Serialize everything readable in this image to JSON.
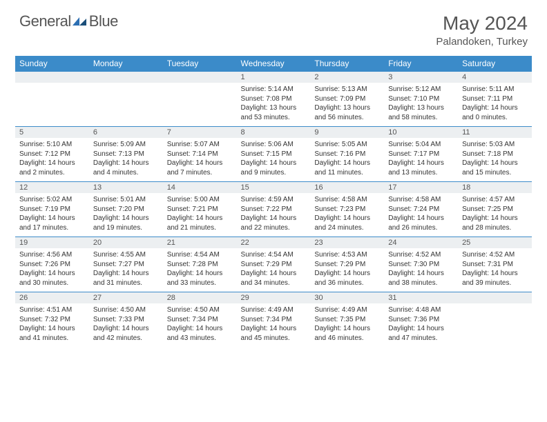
{
  "brand": {
    "name1": "General",
    "name2": "Blue",
    "icon_color": "#2d6fb3"
  },
  "title": "May 2024",
  "location": "Palandoken, Turkey",
  "colors": {
    "header_bg": "#3b8bc9",
    "daynum_bg": "#eceff1",
    "rule": "#3b8bc9"
  },
  "weekdays": [
    "Sunday",
    "Monday",
    "Tuesday",
    "Wednesday",
    "Thursday",
    "Friday",
    "Saturday"
  ],
  "first_weekday_index": 3,
  "days": [
    {
      "n": 1,
      "sr": "5:14 AM",
      "ss": "7:08 PM",
      "dl": "13 hours and 53 minutes."
    },
    {
      "n": 2,
      "sr": "5:13 AM",
      "ss": "7:09 PM",
      "dl": "13 hours and 56 minutes."
    },
    {
      "n": 3,
      "sr": "5:12 AM",
      "ss": "7:10 PM",
      "dl": "13 hours and 58 minutes."
    },
    {
      "n": 4,
      "sr": "5:11 AM",
      "ss": "7:11 PM",
      "dl": "14 hours and 0 minutes."
    },
    {
      "n": 5,
      "sr": "5:10 AM",
      "ss": "7:12 PM",
      "dl": "14 hours and 2 minutes."
    },
    {
      "n": 6,
      "sr": "5:09 AM",
      "ss": "7:13 PM",
      "dl": "14 hours and 4 minutes."
    },
    {
      "n": 7,
      "sr": "5:07 AM",
      "ss": "7:14 PM",
      "dl": "14 hours and 7 minutes."
    },
    {
      "n": 8,
      "sr": "5:06 AM",
      "ss": "7:15 PM",
      "dl": "14 hours and 9 minutes."
    },
    {
      "n": 9,
      "sr": "5:05 AM",
      "ss": "7:16 PM",
      "dl": "14 hours and 11 minutes."
    },
    {
      "n": 10,
      "sr": "5:04 AM",
      "ss": "7:17 PM",
      "dl": "14 hours and 13 minutes."
    },
    {
      "n": 11,
      "sr": "5:03 AM",
      "ss": "7:18 PM",
      "dl": "14 hours and 15 minutes."
    },
    {
      "n": 12,
      "sr": "5:02 AM",
      "ss": "7:19 PM",
      "dl": "14 hours and 17 minutes."
    },
    {
      "n": 13,
      "sr": "5:01 AM",
      "ss": "7:20 PM",
      "dl": "14 hours and 19 minutes."
    },
    {
      "n": 14,
      "sr": "5:00 AM",
      "ss": "7:21 PM",
      "dl": "14 hours and 21 minutes."
    },
    {
      "n": 15,
      "sr": "4:59 AM",
      "ss": "7:22 PM",
      "dl": "14 hours and 22 minutes."
    },
    {
      "n": 16,
      "sr": "4:58 AM",
      "ss": "7:23 PM",
      "dl": "14 hours and 24 minutes."
    },
    {
      "n": 17,
      "sr": "4:58 AM",
      "ss": "7:24 PM",
      "dl": "14 hours and 26 minutes."
    },
    {
      "n": 18,
      "sr": "4:57 AM",
      "ss": "7:25 PM",
      "dl": "14 hours and 28 minutes."
    },
    {
      "n": 19,
      "sr": "4:56 AM",
      "ss": "7:26 PM",
      "dl": "14 hours and 30 minutes."
    },
    {
      "n": 20,
      "sr": "4:55 AM",
      "ss": "7:27 PM",
      "dl": "14 hours and 31 minutes."
    },
    {
      "n": 21,
      "sr": "4:54 AM",
      "ss": "7:28 PM",
      "dl": "14 hours and 33 minutes."
    },
    {
      "n": 22,
      "sr": "4:54 AM",
      "ss": "7:29 PM",
      "dl": "14 hours and 34 minutes."
    },
    {
      "n": 23,
      "sr": "4:53 AM",
      "ss": "7:29 PM",
      "dl": "14 hours and 36 minutes."
    },
    {
      "n": 24,
      "sr": "4:52 AM",
      "ss": "7:30 PM",
      "dl": "14 hours and 38 minutes."
    },
    {
      "n": 25,
      "sr": "4:52 AM",
      "ss": "7:31 PM",
      "dl": "14 hours and 39 minutes."
    },
    {
      "n": 26,
      "sr": "4:51 AM",
      "ss": "7:32 PM",
      "dl": "14 hours and 41 minutes."
    },
    {
      "n": 27,
      "sr": "4:50 AM",
      "ss": "7:33 PM",
      "dl": "14 hours and 42 minutes."
    },
    {
      "n": 28,
      "sr": "4:50 AM",
      "ss": "7:34 PM",
      "dl": "14 hours and 43 minutes."
    },
    {
      "n": 29,
      "sr": "4:49 AM",
      "ss": "7:34 PM",
      "dl": "14 hours and 45 minutes."
    },
    {
      "n": 30,
      "sr": "4:49 AM",
      "ss": "7:35 PM",
      "dl": "14 hours and 46 minutes."
    },
    {
      "n": 31,
      "sr": "4:48 AM",
      "ss": "7:36 PM",
      "dl": "14 hours and 47 minutes."
    }
  ],
  "labels": {
    "sunrise": "Sunrise:",
    "sunset": "Sunset:",
    "daylight": "Daylight:"
  }
}
